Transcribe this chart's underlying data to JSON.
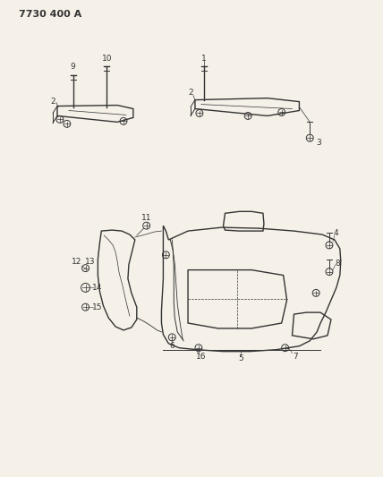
{
  "title_text": "7730 400 A",
  "bg_color": "#f5f0e8",
  "line_color": "#333333",
  "fig_width": 4.28,
  "fig_height": 5.33,
  "dpi": 100
}
